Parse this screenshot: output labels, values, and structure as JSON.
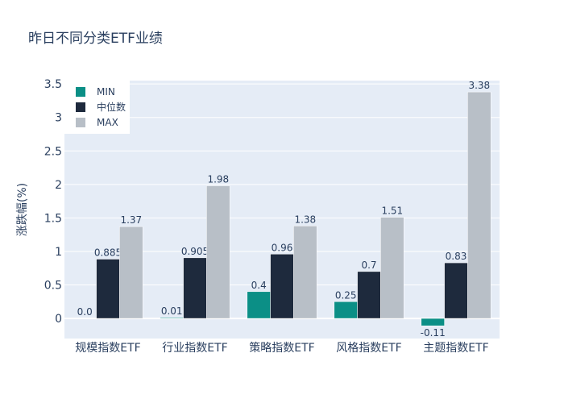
{
  "chart_data": {
    "type": "bar",
    "title": "昨日不同分类ETF业绩",
    "ylabel": "涨跌幅(%)",
    "xlabel": "",
    "ylim": [
      -0.3,
      3.55
    ],
    "yticks": [
      0,
      0.5,
      1,
      1.5,
      2,
      2.5,
      3,
      3.5
    ],
    "ytick_labels": [
      "0",
      "0.5",
      "1",
      "1.5",
      "2",
      "2.5",
      "3",
      "3.5"
    ],
    "categories": [
      "规模指数ETF",
      "行业指数ETF",
      "策略指数ETF",
      "风格指数ETF",
      "主题指数ETF"
    ],
    "series": [
      {
        "name": "MIN",
        "color": "#0b8f86",
        "values": [
          0.0,
          0.01,
          0.4,
          0.25,
          -0.11
        ],
        "labels": [
          "0.0",
          "0.01",
          "0.4",
          "0.25",
          "-0.11"
        ]
      },
      {
        "name": "中位数",
        "color": "#1e2a3d",
        "values": [
          0.885,
          0.905,
          0.96,
          0.7,
          0.83
        ],
        "labels": [
          "0.885",
          "0.905",
          "0.96",
          "0.7",
          "0.83"
        ]
      },
      {
        "name": "MAX",
        "color": "#b8bfc7",
        "values": [
          1.37,
          1.98,
          1.38,
          1.51,
          3.38
        ],
        "labels": [
          "1.37",
          "1.98",
          "1.38",
          "1.51",
          "3.38"
        ]
      }
    ],
    "grid": true,
    "legend": "top-left"
  }
}
